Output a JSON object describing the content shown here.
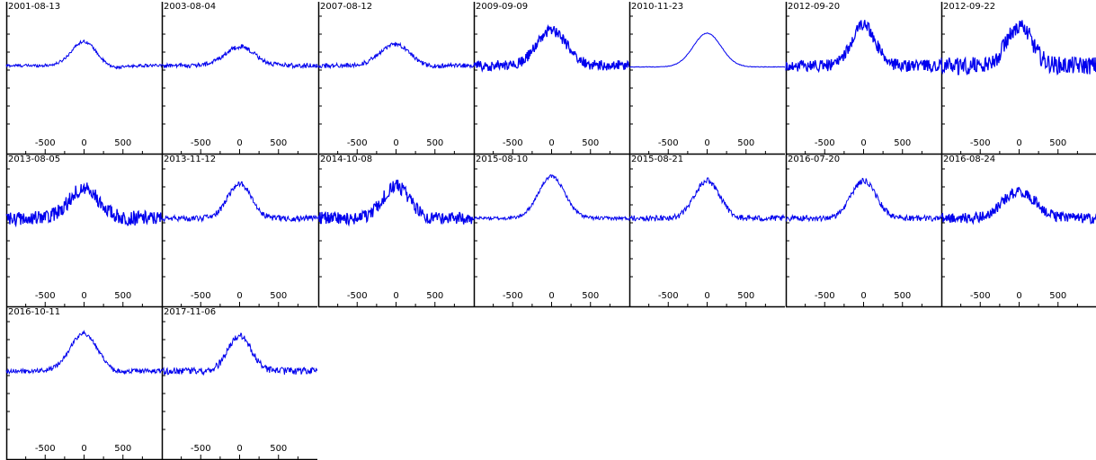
{
  "colors": {
    "line": "#0000ee",
    "frame": "#000000",
    "background": "#ffffff"
  },
  "chart_data": [
    {
      "type": "line",
      "title": "2001-08-13",
      "x_ticks": [
        -500,
        0,
        500
      ],
      "xlim": [
        -1000,
        1000
      ],
      "ylim": [
        0,
        1
      ],
      "grid": false,
      "profile": {
        "baseline": 0.62,
        "peak": 0.8,
        "width": 160,
        "noise": 0.005,
        "dip": 0.02
      }
    },
    {
      "type": "line",
      "title": "2003-08-04",
      "x_ticks": [
        -500,
        0,
        500
      ],
      "xlim": [
        -1000,
        1000
      ],
      "ylim": [
        0,
        1
      ],
      "grid": false,
      "profile": {
        "baseline": 0.62,
        "peak": 0.76,
        "width": 190,
        "noise": 0.008,
        "dip": 0.0
      }
    },
    {
      "type": "line",
      "title": "2007-08-12",
      "x_ticks": [
        -500,
        0,
        500
      ],
      "xlim": [
        -1000,
        1000
      ],
      "ylim": [
        0,
        1
      ],
      "grid": false,
      "profile": {
        "baseline": 0.62,
        "peak": 0.78,
        "width": 200,
        "noise": 0.008,
        "dip": 0.02
      }
    },
    {
      "type": "line",
      "title": "2009-09-09",
      "x_ticks": [
        -500,
        0,
        500
      ],
      "xlim": [
        -1000,
        1000
      ],
      "ylim": [
        0,
        1
      ],
      "grid": false,
      "profile": {
        "baseline": 0.62,
        "peak": 0.88,
        "width": 190,
        "noise": 0.018,
        "dip": 0.0
      }
    },
    {
      "type": "line",
      "title": "2010-11-23",
      "x_ticks": [
        -500,
        0,
        500
      ],
      "xlim": [
        -1000,
        1000
      ],
      "ylim": [
        0,
        1
      ],
      "grid": false,
      "profile": {
        "baseline": 0.61,
        "peak": 0.86,
        "width": 180,
        "noise": 0.001,
        "dip": 0.0
      }
    },
    {
      "type": "line",
      "title": "2012-09-20",
      "x_ticks": [
        -500,
        0,
        500
      ],
      "xlim": [
        -1000,
        1000
      ],
      "ylim": [
        0,
        1
      ],
      "grid": false,
      "profile": {
        "baseline": 0.62,
        "peak": 0.92,
        "width": 150,
        "noise": 0.02,
        "dip": 0.0
      }
    },
    {
      "type": "line",
      "title": "2012-09-22",
      "x_ticks": [
        -500,
        0,
        500
      ],
      "xlim": [
        -1000,
        1000
      ],
      "ylim": [
        0,
        1
      ],
      "grid": false,
      "profile": {
        "baseline": 0.62,
        "peak": 0.92,
        "width": 160,
        "noise": 0.03,
        "dip": 0.0
      }
    },
    {
      "type": "line",
      "title": "2013-08-05",
      "x_ticks": [
        -500,
        0,
        500
      ],
      "xlim": [
        -1000,
        1000
      ],
      "ylim": [
        0,
        1
      ],
      "grid": false,
      "profile": {
        "baseline": 0.62,
        "peak": 0.84,
        "width": 190,
        "noise": 0.025,
        "dip": 0.0
      }
    },
    {
      "type": "line",
      "title": "2013-11-12",
      "x_ticks": [
        -500,
        0,
        500
      ],
      "xlim": [
        -1000,
        1000
      ],
      "ylim": [
        0,
        1
      ],
      "grid": false,
      "profile": {
        "baseline": 0.62,
        "peak": 0.88,
        "width": 150,
        "noise": 0.01,
        "dip": 0.0
      }
    },
    {
      "type": "line",
      "title": "2014-10-08",
      "x_ticks": [
        -500,
        0,
        500
      ],
      "xlim": [
        -1000,
        1000
      ],
      "ylim": [
        0,
        1
      ],
      "grid": false,
      "profile": {
        "baseline": 0.62,
        "peak": 0.86,
        "width": 170,
        "noise": 0.022,
        "dip": 0.0
      }
    },
    {
      "type": "line",
      "title": "2015-08-10",
      "x_ticks": [
        -500,
        0,
        500
      ],
      "xlim": [
        -1000,
        1000
      ],
      "ylim": [
        0,
        1
      ],
      "grid": false,
      "profile": {
        "baseline": 0.62,
        "peak": 0.93,
        "width": 170,
        "noise": 0.006,
        "dip": 0.0
      }
    },
    {
      "type": "line",
      "title": "2015-08-21",
      "x_ticks": [
        -500,
        0,
        500
      ],
      "xlim": [
        -1000,
        1000
      ],
      "ylim": [
        0,
        1
      ],
      "grid": false,
      "profile": {
        "baseline": 0.62,
        "peak": 0.9,
        "width": 160,
        "noise": 0.01,
        "dip": 0.0
      }
    },
    {
      "type": "line",
      "title": "2016-07-20",
      "x_ticks": [
        -500,
        0,
        500
      ],
      "xlim": [
        -1000,
        1000
      ],
      "ylim": [
        0,
        1
      ],
      "grid": false,
      "profile": {
        "baseline": 0.62,
        "peak": 0.9,
        "width": 160,
        "noise": 0.01,
        "dip": 0.0
      }
    },
    {
      "type": "line",
      "title": "2016-08-24",
      "x_ticks": [
        -500,
        0,
        500
      ],
      "xlim": [
        -1000,
        1000
      ],
      "ylim": [
        0,
        1
      ],
      "grid": false,
      "profile": {
        "baseline": 0.62,
        "peak": 0.82,
        "width": 210,
        "noise": 0.018,
        "dip": 0.0
      }
    },
    {
      "type": "line",
      "title": "2016-10-11",
      "x_ticks": [
        -500,
        0,
        500
      ],
      "xlim": [
        -1000,
        1000
      ],
      "ylim": [
        0,
        1
      ],
      "grid": false,
      "profile": {
        "baseline": 0.62,
        "peak": 0.9,
        "width": 180,
        "noise": 0.008,
        "dip": 0.02
      }
    },
    {
      "type": "line",
      "title": "2017-11-06",
      "x_ticks": [
        -500,
        0,
        500
      ],
      "xlim": [
        -1000,
        1000
      ],
      "ylim": [
        0,
        1
      ],
      "grid": false,
      "profile": {
        "baseline": 0.62,
        "peak": 0.88,
        "width": 150,
        "noise": 0.012,
        "dip": 0.0
      }
    }
  ]
}
